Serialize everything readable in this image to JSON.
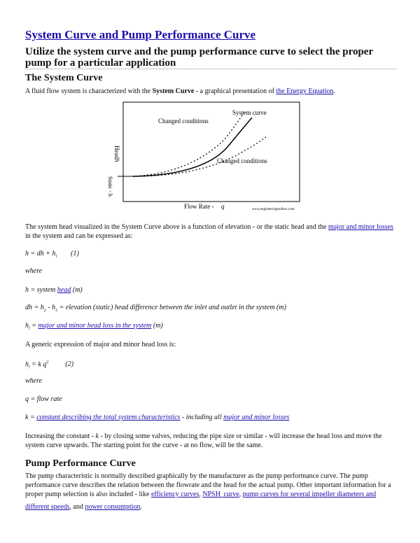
{
  "title": "System Curve and Pump Performance Curve",
  "subtitle": "Utilize the system curve and the pump performance curve to select the proper pump for a particular application",
  "section1": {
    "heading": "The System Curve",
    "intro_a": "A fluid flow system is characterized with the ",
    "intro_bold": "System Curve",
    "intro_b": " - a graphical presentation of ",
    "intro_link": "the Energy Equation",
    "intro_end": "."
  },
  "figure": {
    "label_system": "System curve",
    "label_changed_top": "Changed conditions",
    "label_changed_bottom": "Changed conditions",
    "ylabel_head": "Head",
    "ylabel_h": "h",
    "ylabel_static": "Static - h",
    "xlabel": "Flow Rate -",
    "xlabel_q": "q",
    "watermark": "www.engineeringtoolbox.com"
  },
  "para2": {
    "a": "The system head visualized in the System Curve above is a function of elevation - or the static head and the ",
    "link": "major and minor losses",
    "b": " in the system and can be expressed as:"
  },
  "eq1": {
    "text": "h = dh + h",
    "sub": "l",
    "num": "(1)"
  },
  "where1": "where",
  "def_h": {
    "a": "h = system ",
    "link": "head",
    "b": " (m)"
  },
  "def_dh": {
    "a": "dh = h",
    "s2": "2",
    "b": " - h",
    "s1": "1",
    "c": " = elevation (static) head difference between the inlet and outlet in the system (m)"
  },
  "def_hl": {
    "a": "h",
    "sub": "l",
    "b": " = ",
    "link": "major and minor head loss in the system",
    "c": " (m)"
  },
  "generic": "A generic expression of major and minor head loss is:",
  "eq2": {
    "a": "h",
    "sub": "l",
    "b": " = k q",
    "sup": "2",
    "num": "(2)"
  },
  "where2": "where",
  "def_q": "q = flow rate",
  "def_k": {
    "a": "k = ",
    "link1": "constant describing the total system characteristics",
    "b": " - including all ",
    "link2": "major and minor losses"
  },
  "para3": {
    "a": "Increasing the constant - ",
    "k": "k",
    "b": " - by closing some valves, reducing the pipe size or similar - will increase the head loss and move the system curve upwards. The starting point for the curve - at no flow, will be the same."
  },
  "section2": {
    "heading": "Pump Performance Curve",
    "a": "The pump characteristic is normally described graphically by the manufacturer as the pump performance curve. The pump performance curve describes the relation between the flowrate and the head for the actual pump. Other important information for a proper pump selection is also included - like ",
    "l1": "efficiency curves",
    "c1": ", ",
    "l2a": "NPSH",
    "l2sub": "r",
    "l2b": " curve",
    "c2": ", ",
    "l3": "pump curves for several impeller diameters and different speeds",
    "c3": ", and ",
    "l4": "power consumption",
    "end": "."
  }
}
